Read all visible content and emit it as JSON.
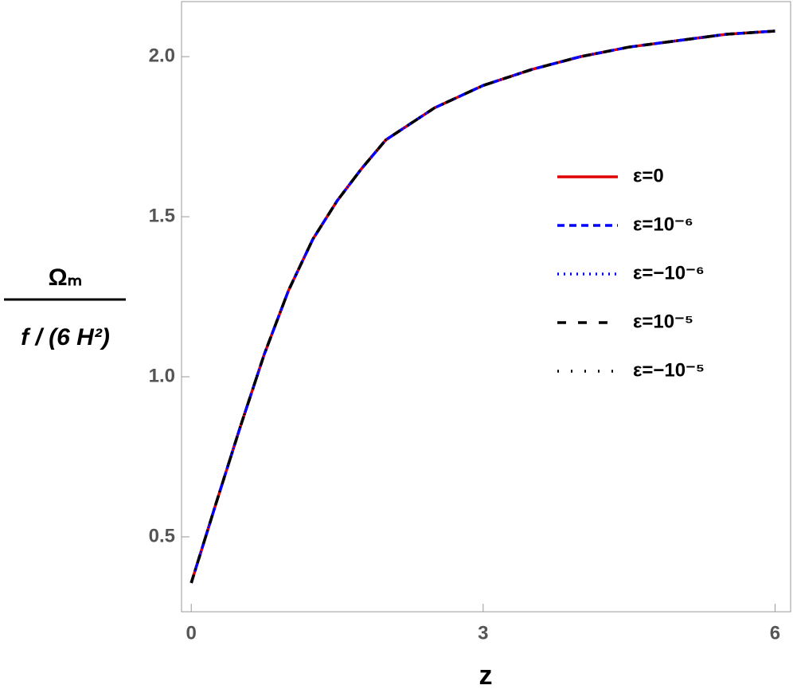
{
  "chart_data": {
    "type": "line",
    "xlabel": "z",
    "ylabel": [
      "Ωₘ",
      "f / (6 H²)"
    ],
    "x": [
      0,
      0.25,
      0.5,
      0.75,
      1,
      1.25,
      1.5,
      1.75,
      2,
      2.5,
      3,
      3.5,
      4,
      4.5,
      5,
      5.5,
      6
    ],
    "series": [
      {
        "name": "ε=0",
        "color": "#e00000",
        "dash": "solid",
        "values": [
          0.356,
          0.6,
          0.84,
          1.07,
          1.27,
          1.43,
          1.55,
          1.65,
          1.74,
          1.84,
          1.91,
          1.96,
          2.0,
          2.03,
          2.05,
          2.07,
          2.08
        ]
      },
      {
        "name": "ε=10⁻⁶",
        "color": "#0000ff",
        "dash": "dashed",
        "values": [
          0.356,
          0.6,
          0.84,
          1.07,
          1.27,
          1.43,
          1.55,
          1.65,
          1.74,
          1.84,
          1.91,
          1.96,
          2.0,
          2.03,
          2.05,
          2.07,
          2.08
        ]
      },
      {
        "name": "ε=−10⁻⁶",
        "color": "#0000ff",
        "dash": "dotted",
        "values": [
          0.356,
          0.6,
          0.84,
          1.07,
          1.27,
          1.43,
          1.55,
          1.65,
          1.74,
          1.84,
          1.91,
          1.96,
          2.0,
          2.03,
          2.05,
          2.07,
          2.08
        ]
      },
      {
        "name": "ε=10⁻⁵",
        "color": "#000000",
        "dash": "long-dashed",
        "values": [
          0.356,
          0.6,
          0.84,
          1.07,
          1.27,
          1.43,
          1.55,
          1.65,
          1.74,
          1.84,
          1.91,
          1.96,
          2.0,
          2.03,
          2.05,
          2.07,
          2.08
        ]
      },
      {
        "name": "ε=−10⁻⁵",
        "color": "#000000",
        "dash": "sparse-dotted",
        "values": [
          0.356,
          0.6,
          0.84,
          1.07,
          1.27,
          1.43,
          1.55,
          1.65,
          1.74,
          1.84,
          1.91,
          1.96,
          2.0,
          2.03,
          2.05,
          2.07,
          2.08
        ]
      }
    ],
    "xlim": [
      -0.1,
      6.16
    ],
    "ylim": [
      0.266,
      2.172
    ],
    "xticks": [
      0,
      3,
      6
    ],
    "yticks": [
      0.5,
      {
        "value": 1,
        "label": "1.0"
      },
      1.5,
      {
        "value": 2,
        "label": "2.0"
      }
    ],
    "legend": "right"
  }
}
